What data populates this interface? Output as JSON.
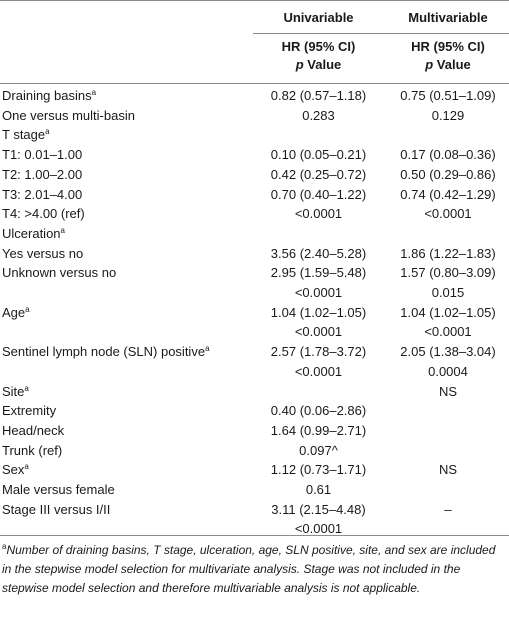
{
  "header": {
    "col1_title": "Univariable",
    "col2_title": "Multivariable",
    "col1_sub1": "HR (95% CI)",
    "col1_sub2_italic": "p",
    "col1_sub2_rest": " Value",
    "col2_sub1": "HR (95% CI)",
    "col2_sub2_italic": "p",
    "col2_sub2_rest": " Value"
  },
  "rows": [
    {
      "label": "Draining basins",
      "sup": "a",
      "uni": "0.82 (0.57–1.18)",
      "multi": "0.75 (0.51–1.09)"
    },
    {
      "label": "One versus multi-basin",
      "sup": "",
      "uni": "0.283",
      "multi": "0.129"
    },
    {
      "label": "T stage",
      "sup": "a",
      "uni": "",
      "multi": ""
    },
    {
      "label": "T1: 0.01–1.00",
      "sup": "",
      "uni": "0.10 (0.05–0.21)",
      "multi": "0.17 (0.08–0.36)"
    },
    {
      "label": "T2: 1.00–2.00",
      "sup": "",
      "uni": "0.42 (0.25–0.72)",
      "multi": "0.50 (0.29–0.86)"
    },
    {
      "label": "T3: 2.01–4.00",
      "sup": "",
      "uni": "0.70 (0.40–1.22)",
      "multi": "0.74 (0.42–1.29)"
    },
    {
      "label": "T4: >4.00 (ref)",
      "sup": "",
      "uni": "<0.0001",
      "multi": "<0.0001"
    },
    {
      "label": "Ulceration",
      "sup": "a",
      "uni": "",
      "multi": ""
    },
    {
      "label": "Yes versus no",
      "sup": "",
      "uni": "3.56 (2.40–5.28)",
      "multi": "1.86 (1.22–1.83)"
    },
    {
      "label": "Unknown versus no",
      "sup": "",
      "uni": "2.95 (1.59–5.48)",
      "multi": "1.57 (0.80–3.09)"
    },
    {
      "label": "",
      "sup": "",
      "uni": "<0.0001",
      "multi": "0.015"
    },
    {
      "label": "Age",
      "sup": "a",
      "uni": "1.04 (1.02–1.05)",
      "multi": "1.04 (1.02–1.05)"
    },
    {
      "label": "",
      "sup": "",
      "uni": "<0.0001",
      "multi": "<0.0001"
    },
    {
      "label": "Sentinel lymph node (SLN) positive",
      "sup": "a",
      "uni": "2.57 (1.78–3.72)",
      "multi": "2.05 (1.38–3.04)"
    },
    {
      "label": "",
      "sup": "",
      "uni": "<0.0001",
      "multi": "0.0004"
    },
    {
      "label": "Site",
      "sup": "a",
      "uni": "",
      "multi": "NS"
    },
    {
      "label": "Extremity",
      "sup": "",
      "uni": "0.40 (0.06–2.86)",
      "multi": ""
    },
    {
      "label": "Head/neck",
      "sup": "",
      "uni": "1.64 (0.99–2.71)",
      "multi": ""
    },
    {
      "label": "Trunk (ref)",
      "sup": "",
      "uni": "0.097^",
      "multi": ""
    },
    {
      "label": "Sex",
      "sup": "a",
      "uni": "1.12 (0.73–1.71)",
      "multi": "NS"
    },
    {
      "label": "Male versus female",
      "sup": "",
      "uni": "0.61",
      "multi": ""
    },
    {
      "label": "Stage III versus I/II",
      "sup": "",
      "uni": "3.11 (2.15–4.48)",
      "multi": "–"
    },
    {
      "label": "",
      "sup": "",
      "uni": "<0.0001",
      "multi": ""
    }
  ],
  "footnote": {
    "marker": "a",
    "text": "Number of draining basins, T stage, ulceration, age, SLN positive, site, and sex are included in the stepwise model selection for multivariate analysis. Stage was not included in the stepwise model selection and therefore multivariable analysis is not applicable."
  }
}
